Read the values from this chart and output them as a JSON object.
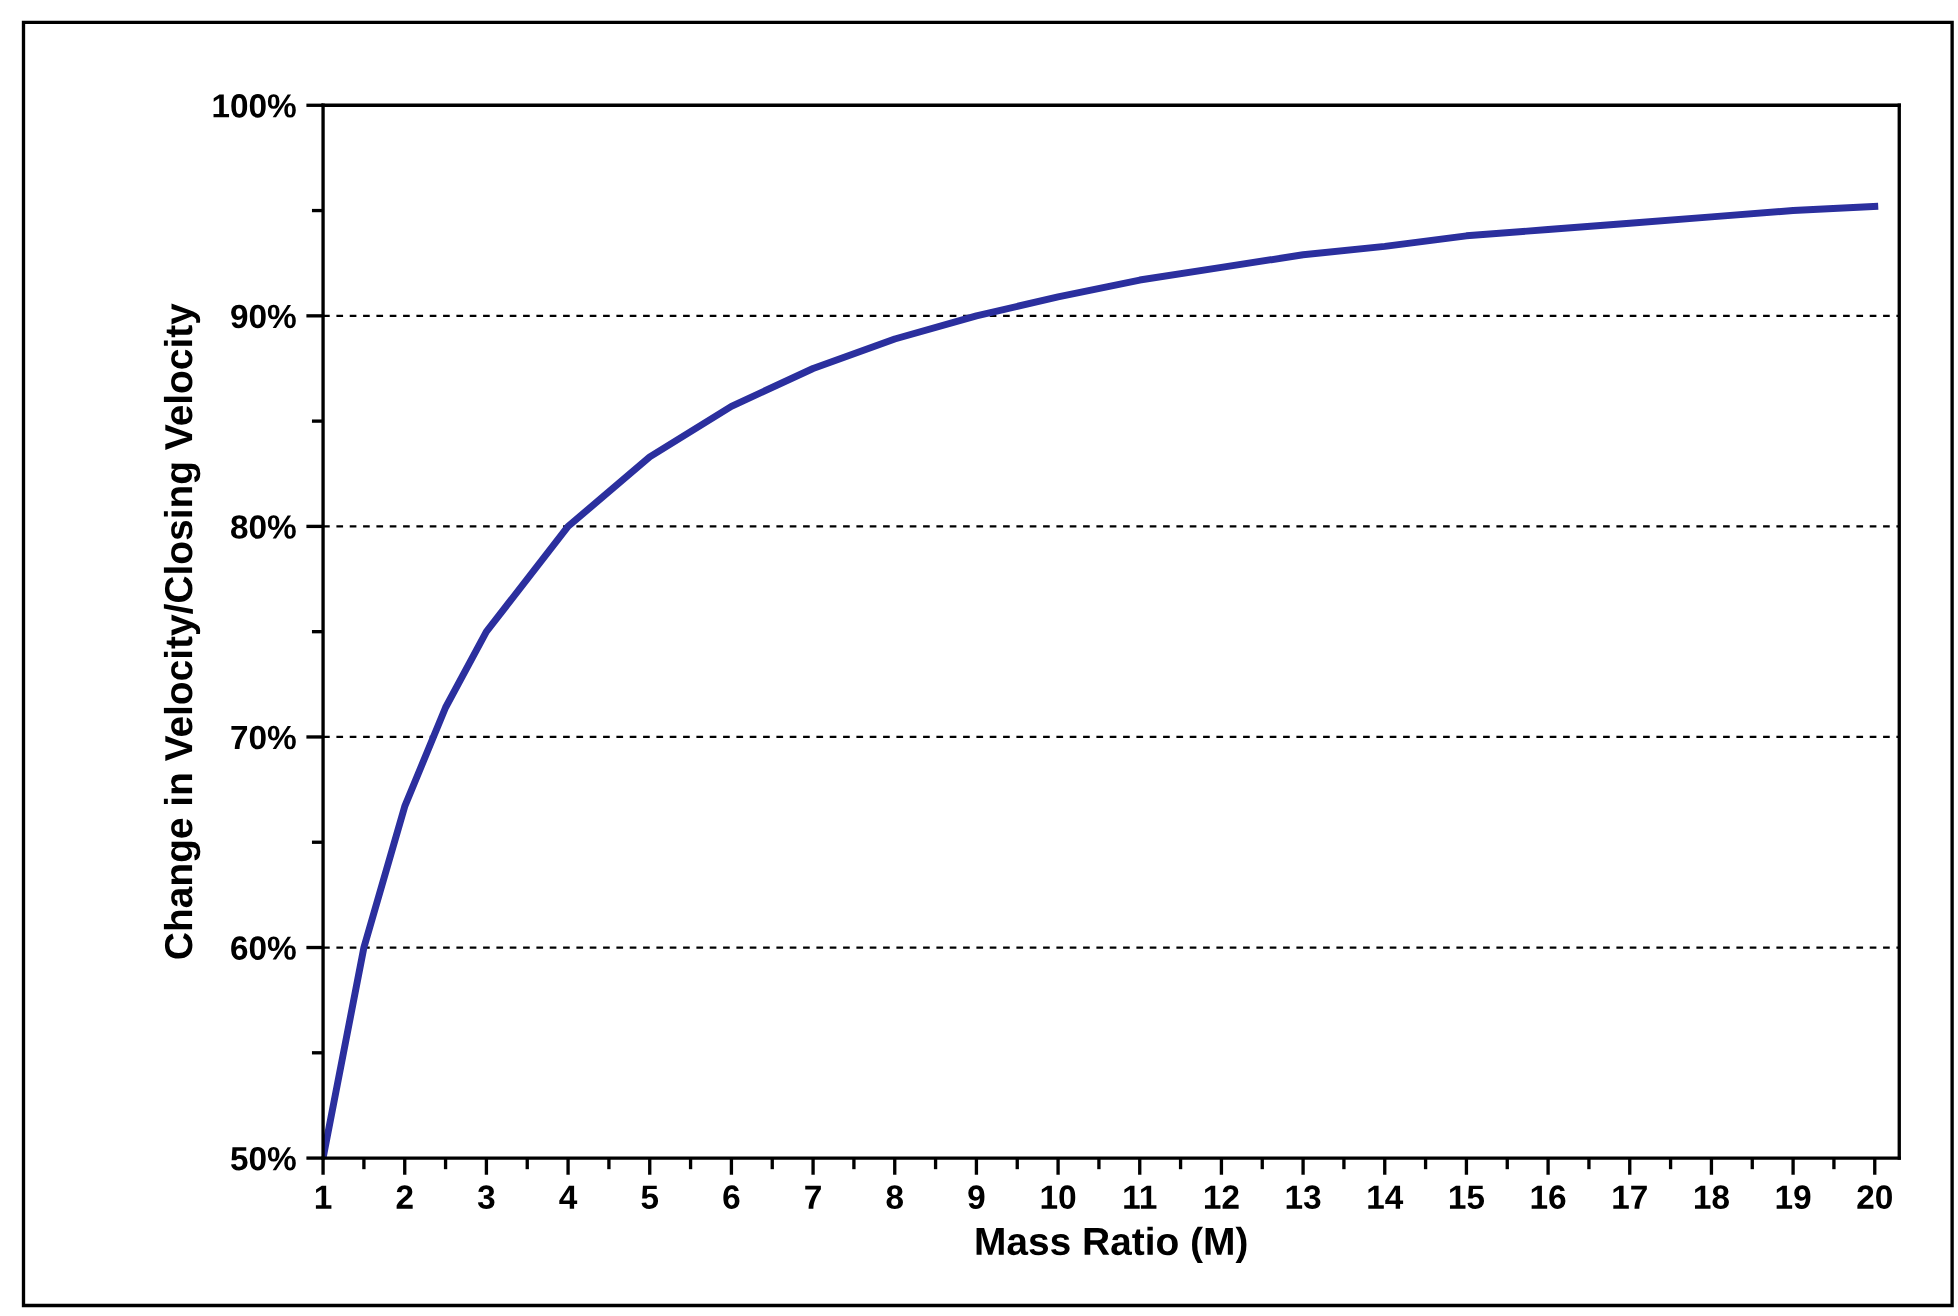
{
  "chart_data": {
    "type": "line",
    "xlabel": "Mass Ratio (M)",
    "ylabel": "Change in Velocity/Closing Velocity",
    "x": [
      1,
      1.5,
      2,
      2.5,
      3,
      4,
      5,
      6,
      7,
      8,
      9,
      10,
      11,
      12,
      13,
      14,
      15,
      16,
      17,
      18,
      19,
      20
    ],
    "series": [
      {
        "color": "#2b2f9e",
        "values": [
          50,
          60,
          66.7,
          71.4,
          75,
          80,
          83.3,
          85.7,
          87.5,
          88.9,
          90,
          90.9,
          91.7,
          92.3,
          92.9,
          93.3,
          93.8,
          94.1,
          94.4,
          94.7,
          95,
          95.2
        ]
      }
    ],
    "xlim": [
      1,
      20.3
    ],
    "xticks": [
      1,
      2,
      3,
      4,
      5,
      6,
      7,
      8,
      9,
      10,
      11,
      12,
      13,
      14,
      15,
      16,
      17,
      18,
      19,
      20,
      {
        "value": 1.5,
        "label": null
      },
      {
        "value": 2.5,
        "label": null
      },
      {
        "value": 3.5,
        "label": null
      },
      {
        "value": 4.5,
        "label": null
      },
      {
        "value": 5.5,
        "label": null
      },
      {
        "value": 6.5,
        "label": null
      },
      {
        "value": 7.5,
        "label": null
      },
      {
        "value": 8.5,
        "label": null
      },
      {
        "value": 9.5,
        "label": null
      },
      {
        "value": 10.5,
        "label": null
      },
      {
        "value": 11.5,
        "label": null
      },
      {
        "value": 12.5,
        "label": null
      },
      {
        "value": 13.5,
        "label": null
      },
      {
        "value": 14.5,
        "label": null
      },
      {
        "value": 15.5,
        "label": null
      },
      {
        "value": 16.5,
        "label": null
      },
      {
        "value": 17.5,
        "label": null
      },
      {
        "value": 18.5,
        "label": null
      },
      {
        "value": 19.5,
        "label": null
      }
    ],
    "ylim": [
      50,
      100
    ],
    "yticks": [
      {
        "value": 50,
        "label": "50%"
      },
      {
        "value": 60,
        "label": "60%"
      },
      {
        "value": 70,
        "label": "70%"
      },
      {
        "value": 80,
        "label": "80%"
      },
      {
        "value": 90,
        "label": "90%"
      },
      {
        "value": 100,
        "label": "100%"
      },
      {
        "value": 55,
        "label": null
      },
      {
        "value": 65,
        "label": null
      },
      {
        "value": 75,
        "label": null
      },
      {
        "value": 85,
        "label": null
      },
      {
        "value": 95,
        "label": null
      }
    ],
    "grid": "y",
    "line_style": "solid",
    "marker": "none"
  }
}
